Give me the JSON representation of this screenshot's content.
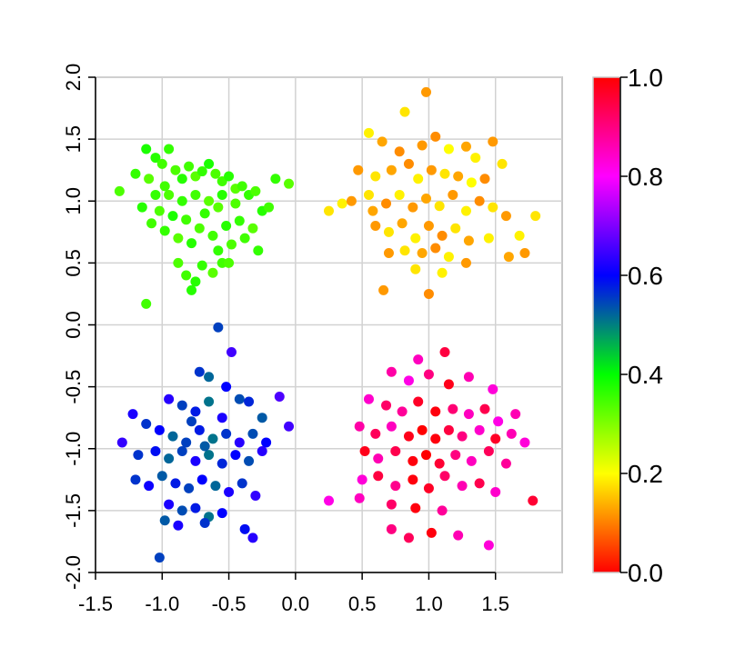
{
  "chart_data": {
    "type": "scatter",
    "title": "",
    "xlabel": "",
    "ylabel": "",
    "xlim": [
      -1.5,
      2.0
    ],
    "ylim": [
      -2.0,
      2.0
    ],
    "grid": true,
    "x_ticks": [
      "-1.5",
      "-1.0",
      "-0.5",
      "0.0",
      "0.5",
      "1.0",
      "1.5"
    ],
    "y_ticks": [
      "-2.0",
      "-1.5",
      "-1.0",
      "-0.5",
      "0.0",
      "0.5",
      "1.0",
      "1.5",
      "2.0"
    ],
    "colorbar": {
      "range": [
        0.0,
        1.0
      ],
      "ticks": [
        "0.0",
        "0.2",
        "0.4",
        "0.6",
        "0.8",
        "1.0"
      ],
      "colormap": "rainbow (0 red, 0.2 yellow, 0.4 green, 0.6 blue, 0.8 magenta, 1.0 red)"
    },
    "series": [
      {
        "cluster": "top-left",
        "points": [
          [
            -1.32,
            1.08,
            0.34
          ],
          [
            -1.2,
            1.22,
            0.36
          ],
          [
            -1.12,
            1.42,
            0.38
          ],
          [
            -1.05,
            1.35,
            0.37
          ],
          [
            -1.1,
            1.18,
            0.33
          ],
          [
            -1.0,
            1.3,
            0.35
          ],
          [
            -0.95,
            1.42,
            0.36
          ],
          [
            -0.9,
            1.25,
            0.34
          ],
          [
            -0.85,
            1.18,
            0.37
          ],
          [
            -0.8,
            1.28,
            0.35
          ],
          [
            -0.75,
            1.2,
            0.33
          ],
          [
            -0.7,
            1.24,
            0.36
          ],
          [
            -0.65,
            1.3,
            0.38
          ],
          [
            -0.6,
            1.22,
            0.34
          ],
          [
            -0.55,
            1.16,
            0.35
          ],
          [
            -0.5,
            1.2,
            0.37
          ],
          [
            -0.45,
            1.1,
            0.33
          ],
          [
            -0.4,
            1.12,
            0.35
          ],
          [
            -0.35,
            1.05,
            0.36
          ],
          [
            -0.3,
            1.08,
            0.34
          ],
          [
            -0.25,
            0.92,
            0.37
          ],
          [
            -0.2,
            0.95,
            0.35
          ],
          [
            -0.05,
            1.14,
            0.33
          ],
          [
            -0.15,
            1.18,
            0.36
          ],
          [
            -1.15,
            0.95,
            0.37
          ],
          [
            -1.08,
            0.82,
            0.35
          ],
          [
            -1.02,
            0.92,
            0.34
          ],
          [
            -0.98,
            0.76,
            0.36
          ],
          [
            -0.92,
            0.88,
            0.38
          ],
          [
            -0.88,
            0.7,
            0.33
          ],
          [
            -0.82,
            0.85,
            0.35
          ],
          [
            -0.78,
            0.66,
            0.37
          ],
          [
            -0.72,
            0.78,
            0.34
          ],
          [
            -0.68,
            0.9,
            0.36
          ],
          [
            -0.62,
            0.72,
            0.35
          ],
          [
            -0.58,
            0.95,
            0.33
          ],
          [
            -0.52,
            0.8,
            0.37
          ],
          [
            -0.48,
            0.65,
            0.34
          ],
          [
            -0.42,
            0.84,
            0.36
          ],
          [
            -0.38,
            0.7,
            0.35
          ],
          [
            -0.32,
            0.78,
            0.33
          ],
          [
            -0.28,
            0.6,
            0.36
          ],
          [
            -0.88,
            0.5,
            0.34
          ],
          [
            -0.82,
            0.4,
            0.35
          ],
          [
            -0.75,
            0.35,
            0.37
          ],
          [
            -0.7,
            0.48,
            0.36
          ],
          [
            -0.62,
            0.42,
            0.33
          ],
          [
            -0.55,
            0.5,
            0.35
          ],
          [
            -0.5,
            0.5,
            0.34
          ],
          [
            -0.58,
            0.6,
            0.36
          ],
          [
            -0.78,
            0.28,
            0.37
          ],
          [
            -1.12,
            0.17,
            0.35
          ],
          [
            -0.95,
            1.05,
            0.34
          ],
          [
            -0.85,
            1.0,
            0.36
          ],
          [
            -0.75,
            1.05,
            0.35
          ],
          [
            -0.65,
            1.0,
            0.33
          ],
          [
            -0.55,
            1.05,
            0.37
          ],
          [
            -0.45,
            0.98,
            0.34
          ],
          [
            -1.05,
            1.05,
            0.36
          ],
          [
            -0.98,
            1.12,
            0.35
          ]
        ]
      },
      {
        "cluster": "top-right",
        "points": [
          [
            0.98,
            1.88,
            0.12
          ],
          [
            0.82,
            1.72,
            0.18
          ],
          [
            0.55,
            1.55,
            0.19
          ],
          [
            0.65,
            1.48,
            0.13
          ],
          [
            0.78,
            1.4,
            0.11
          ],
          [
            0.95,
            1.45,
            0.12
          ],
          [
            1.05,
            1.52,
            0.11
          ],
          [
            1.15,
            1.42,
            0.2
          ],
          [
            1.28,
            1.44,
            0.13
          ],
          [
            1.35,
            1.35,
            0.19
          ],
          [
            1.48,
            1.48,
            0.12
          ],
          [
            1.55,
            1.3,
            0.18
          ],
          [
            0.47,
            1.25,
            0.12
          ],
          [
            0.6,
            1.2,
            0.18
          ],
          [
            0.72,
            1.25,
            0.13
          ],
          [
            0.85,
            1.3,
            0.11
          ],
          [
            0.92,
            1.18,
            0.19
          ],
          [
            1.02,
            1.25,
            0.12
          ],
          [
            1.12,
            1.22,
            0.18
          ],
          [
            1.22,
            1.2,
            0.13
          ],
          [
            1.32,
            1.15,
            0.2
          ],
          [
            1.42,
            1.18,
            0.11
          ],
          [
            0.25,
            0.92,
            0.18
          ],
          [
            0.35,
            0.98,
            0.19
          ],
          [
            0.42,
            1.0,
            0.12
          ],
          [
            0.55,
            1.05,
            0.18
          ],
          [
            0.58,
            0.92,
            0.13
          ],
          [
            0.68,
            0.98,
            0.11
          ],
          [
            0.78,
            1.05,
            0.19
          ],
          [
            0.88,
            0.95,
            0.12
          ],
          [
            0.98,
            1.02,
            0.13
          ],
          [
            1.08,
            0.96,
            0.18
          ],
          [
            1.18,
            1.05,
            0.12
          ],
          [
            1.28,
            0.92,
            0.19
          ],
          [
            1.38,
            1.0,
            0.11
          ],
          [
            1.48,
            0.95,
            0.18
          ],
          [
            1.58,
            0.88,
            0.12
          ],
          [
            1.68,
            0.72,
            0.19
          ],
          [
            1.8,
            0.88,
            0.18
          ],
          [
            0.6,
            0.8,
            0.12
          ],
          [
            0.7,
            0.75,
            0.18
          ],
          [
            0.8,
            0.82,
            0.13
          ],
          [
            0.9,
            0.7,
            0.19
          ],
          [
            1.0,
            0.8,
            0.12
          ],
          [
            1.1,
            0.72,
            0.11
          ],
          [
            1.2,
            0.78,
            0.18
          ],
          [
            1.3,
            0.68,
            0.13
          ],
          [
            1.45,
            0.7,
            0.19
          ],
          [
            0.7,
            0.58,
            0.12
          ],
          [
            0.82,
            0.6,
            0.18
          ],
          [
            0.95,
            0.58,
            0.13
          ],
          [
            1.05,
            0.62,
            0.11
          ],
          [
            1.15,
            0.55,
            0.19
          ],
          [
            1.28,
            0.5,
            0.12
          ],
          [
            1.6,
            0.55,
            0.13
          ],
          [
            1.72,
            0.58,
            0.12
          ],
          [
            0.66,
            0.28,
            0.12
          ],
          [
            1.0,
            0.25,
            0.11
          ],
          [
            0.9,
            0.45,
            0.18
          ],
          [
            1.1,
            0.42,
            0.19
          ]
        ]
      },
      {
        "cluster": "bottom-left",
        "points": [
          [
            -0.58,
            -0.02,
            0.55
          ],
          [
            -0.48,
            -0.22,
            0.65
          ],
          [
            -0.72,
            -0.38,
            0.56
          ],
          [
            -0.65,
            -0.42,
            0.52
          ],
          [
            -0.52,
            -0.5,
            0.6
          ],
          [
            -0.42,
            -0.6,
            0.54
          ],
          [
            -0.95,
            -0.6,
            0.63
          ],
          [
            -0.85,
            -0.65,
            0.55
          ],
          [
            -0.75,
            -0.7,
            0.58
          ],
          [
            -0.65,
            -0.62,
            0.51
          ],
          [
            -0.55,
            -0.75,
            0.62
          ],
          [
            -0.35,
            -0.62,
            0.57
          ],
          [
            -0.25,
            -0.75,
            0.53
          ],
          [
            -0.12,
            -0.58,
            0.66
          ],
          [
            -1.22,
            -0.72,
            0.62
          ],
          [
            -1.12,
            -0.8,
            0.56
          ],
          [
            -1.02,
            -0.85,
            0.6
          ],
          [
            -0.92,
            -0.9,
            0.52
          ],
          [
            -0.82,
            -0.95,
            0.55
          ],
          [
            -0.72,
            -0.85,
            0.58
          ],
          [
            -0.62,
            -0.92,
            0.51
          ],
          [
            -0.52,
            -0.88,
            0.56
          ],
          [
            -0.42,
            -0.95,
            0.63
          ],
          [
            -0.32,
            -0.88,
            0.54
          ],
          [
            -0.22,
            -0.95,
            0.6
          ],
          [
            -0.05,
            -0.82,
            0.65
          ],
          [
            -1.3,
            -0.95,
            0.64
          ],
          [
            -1.18,
            -1.05,
            0.56
          ],
          [
            -1.05,
            -1.02,
            0.59
          ],
          [
            -0.95,
            -1.08,
            0.52
          ],
          [
            -0.85,
            -1.02,
            0.55
          ],
          [
            -0.75,
            -1.1,
            0.62
          ],
          [
            -0.65,
            -1.05,
            0.51
          ],
          [
            -0.55,
            -1.12,
            0.57
          ],
          [
            -0.45,
            -1.05,
            0.6
          ],
          [
            -0.35,
            -1.1,
            0.54
          ],
          [
            -0.25,
            -1.02,
            0.63
          ],
          [
            -1.2,
            -1.25,
            0.56
          ],
          [
            -1.1,
            -1.3,
            0.61
          ],
          [
            -1.0,
            -1.22,
            0.53
          ],
          [
            -0.9,
            -1.28,
            0.58
          ],
          [
            -0.8,
            -1.32,
            0.55
          ],
          [
            -0.7,
            -1.25,
            0.6
          ],
          [
            -0.6,
            -1.3,
            0.52
          ],
          [
            -0.5,
            -1.35,
            0.62
          ],
          [
            -0.4,
            -1.28,
            0.56
          ],
          [
            -0.3,
            -1.38,
            0.64
          ],
          [
            -0.95,
            -1.45,
            0.62
          ],
          [
            -0.85,
            -1.5,
            0.54
          ],
          [
            -0.75,
            -1.48,
            0.58
          ],
          [
            -0.65,
            -1.55,
            0.51
          ],
          [
            -0.55,
            -1.52,
            0.6
          ],
          [
            -0.98,
            -1.58,
            0.53
          ],
          [
            -0.88,
            -1.62,
            0.62
          ],
          [
            -0.68,
            -1.6,
            0.56
          ],
          [
            -0.38,
            -1.65,
            0.59
          ],
          [
            -0.32,
            -1.72,
            0.63
          ],
          [
            -1.02,
            -1.88,
            0.55
          ],
          [
            -0.78,
            -0.78,
            0.55
          ],
          [
            -0.68,
            -0.98,
            0.53
          ]
        ]
      },
      {
        "cluster": "bottom-right",
        "points": [
          [
            0.92,
            -0.28,
            0.85
          ],
          [
            1.12,
            -0.22,
            0.95
          ],
          [
            0.72,
            -0.38,
            0.87
          ],
          [
            0.85,
            -0.45,
            0.82
          ],
          [
            1.0,
            -0.4,
            0.9
          ],
          [
            1.15,
            -0.48,
            0.98
          ],
          [
            1.3,
            -0.42,
            0.86
          ],
          [
            1.48,
            -0.52,
            0.83
          ],
          [
            0.55,
            -0.6,
            0.84
          ],
          [
            0.68,
            -0.65,
            0.92
          ],
          [
            0.8,
            -0.7,
            0.88
          ],
          [
            0.92,
            -0.62,
            0.97
          ],
          [
            1.05,
            -0.7,
            0.99
          ],
          [
            1.18,
            -0.68,
            0.91
          ],
          [
            1.3,
            -0.72,
            0.85
          ],
          [
            1.42,
            -0.68,
            0.94
          ],
          [
            1.52,
            -0.78,
            0.82
          ],
          [
            1.65,
            -0.72,
            0.86
          ],
          [
            0.48,
            -0.82,
            0.87
          ],
          [
            0.6,
            -0.88,
            0.93
          ],
          [
            0.72,
            -0.82,
            0.85
          ],
          [
            0.85,
            -0.9,
            0.98
          ],
          [
            0.95,
            -0.85,
            1.0
          ],
          [
            1.05,
            -0.92,
            0.99
          ],
          [
            1.15,
            -0.85,
            0.95
          ],
          [
            1.25,
            -0.9,
            0.9
          ],
          [
            1.38,
            -0.85,
            0.84
          ],
          [
            1.5,
            -0.92,
            0.97
          ],
          [
            1.62,
            -0.88,
            0.86
          ],
          [
            1.72,
            -0.95,
            0.83
          ],
          [
            0.52,
            -1.02,
            0.98
          ],
          [
            0.62,
            -1.08,
            0.86
          ],
          [
            0.75,
            -1.02,
            0.94
          ],
          [
            0.88,
            -1.1,
            0.99
          ],
          [
            0.98,
            -1.05,
            1.0
          ],
          [
            1.08,
            -1.12,
            0.96
          ],
          [
            1.2,
            -1.05,
            0.9
          ],
          [
            1.32,
            -1.1,
            0.85
          ],
          [
            1.45,
            -1.02,
            0.93
          ],
          [
            1.58,
            -1.12,
            0.88
          ],
          [
            0.5,
            -1.25,
            0.83
          ],
          [
            0.62,
            -1.22,
            0.95
          ],
          [
            0.75,
            -1.3,
            0.89
          ],
          [
            0.88,
            -1.25,
            0.99
          ],
          [
            1.0,
            -1.32,
            0.97
          ],
          [
            1.12,
            -1.22,
            0.92
          ],
          [
            1.25,
            -1.3,
            0.86
          ],
          [
            1.38,
            -1.28,
            0.94
          ],
          [
            1.5,
            -1.35,
            0.84
          ],
          [
            0.25,
            -1.42,
            0.82
          ],
          [
            0.48,
            -1.4,
            0.85
          ],
          [
            0.72,
            -1.45,
            0.92
          ],
          [
            0.9,
            -1.48,
            0.99
          ],
          [
            1.1,
            -1.5,
            0.88
          ],
          [
            0.72,
            -1.65,
            0.9
          ],
          [
            0.85,
            -1.72,
            0.93
          ],
          [
            1.02,
            -1.68,
            0.99
          ],
          [
            1.22,
            -1.7,
            0.86
          ],
          [
            1.45,
            -1.78,
            0.83
          ],
          [
            1.78,
            -1.42,
            0.96
          ]
        ]
      }
    ]
  }
}
